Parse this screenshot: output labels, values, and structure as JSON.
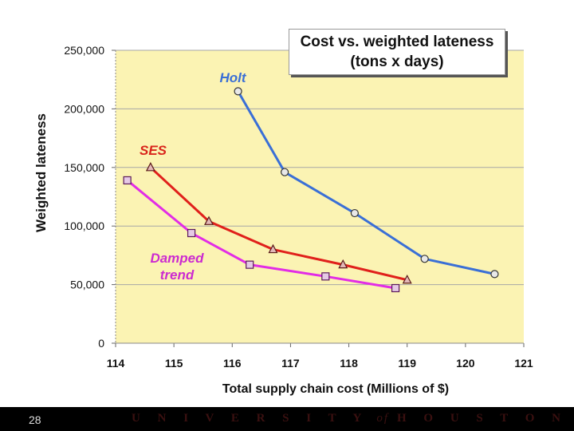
{
  "chart_data": {
    "type": "line",
    "title_line1": "Cost vs. weighted lateness",
    "title_line2": "(tons x days)",
    "xlabel": "Total supply chain cost (Millions of $)",
    "ylabel": "Weighted lateness",
    "xlim": [
      114,
      121
    ],
    "ylim": [
      0,
      250000
    ],
    "x_ticks": [
      114,
      115,
      116,
      117,
      118,
      119,
      120,
      121
    ],
    "x_tick_labels": [
      "114",
      "115",
      "116",
      "117",
      "118",
      "119",
      "120",
      "121"
    ],
    "y_ticks": [
      0,
      50000,
      100000,
      150000,
      200000,
      250000
    ],
    "y_tick_labels": [
      "0",
      "50,000",
      "100,000",
      "150,000",
      "200,000",
      "250,000"
    ],
    "plot_background": "#fbf3b3",
    "series": [
      {
        "name": "Holt",
        "label_lines": [
          "Holt"
        ],
        "color": "#3a6fd6",
        "label_color": "#3a6fd6",
        "marker": "circle",
        "points": [
          [
            116.1,
            215000
          ],
          [
            116.9,
            146000
          ],
          [
            118.1,
            111000
          ],
          [
            119.3,
            72000
          ],
          [
            120.5,
            59000
          ]
        ]
      },
      {
        "name": "SES",
        "label_lines": [
          "SES"
        ],
        "color": "#e0201b",
        "label_color": "#d9261c",
        "marker": "triangle",
        "points": [
          [
            114.6,
            150000
          ],
          [
            115.6,
            104000
          ],
          [
            116.7,
            80000
          ],
          [
            117.9,
            67000
          ],
          [
            119.0,
            54000
          ]
        ]
      },
      {
        "name": "Damped trend",
        "label_lines": [
          "Damped",
          "trend"
        ],
        "color": "#e22ce6",
        "label_color": "#cc2bd0",
        "marker": "square",
        "points": [
          [
            114.2,
            139000
          ],
          [
            115.3,
            94000
          ],
          [
            116.3,
            67000
          ],
          [
            117.6,
            57000
          ],
          [
            118.8,
            47000
          ]
        ]
      }
    ]
  },
  "footer": {
    "slide_number": "28",
    "university_left": "U N I V E R S I T Y",
    "university_of": "of",
    "university_right": "H O U S T O N"
  }
}
